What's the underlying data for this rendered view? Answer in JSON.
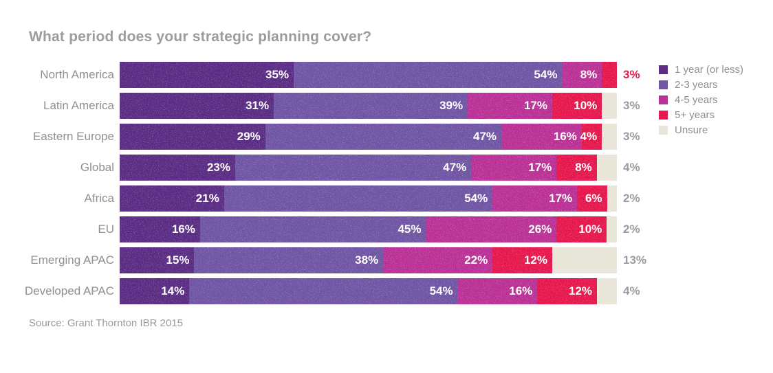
{
  "title": "What period does your strategic planning cover?",
  "source": "Source: Grant Thornton IBR 2015",
  "chart_data": {
    "type": "bar",
    "stacked": true,
    "orientation": "horizontal",
    "unit": "%",
    "x_max": 100,
    "grid": false,
    "legend_position": "right",
    "inside_label_min_value": 4,
    "legend": [
      {
        "key": "1_year_or_less",
        "label": "1 year (or less)",
        "color": "#5b2d84"
      },
      {
        "key": "2_3_years",
        "label": "2-3 years",
        "color": "#7056a4"
      },
      {
        "key": "4_5_years",
        "label": "4-5 years",
        "color": "#bb3297"
      },
      {
        "key": "5_plus_years",
        "label": "5+ years",
        "color": "#e6194e"
      },
      {
        "key": "unsure",
        "label": "Unsure",
        "color": "#e9e5d8"
      }
    ],
    "rows": [
      {
        "category": "North America",
        "values": [
          35,
          54,
          8,
          3,
          0
        ],
        "end_label": "3%",
        "end_label_emphasis": true
      },
      {
        "category": "Latin America",
        "values": [
          31,
          39,
          17,
          10,
          3
        ],
        "end_label": "3%",
        "end_label_emphasis": false
      },
      {
        "category": "Eastern Europe",
        "values": [
          29,
          47,
          16,
          4,
          3
        ],
        "end_label": "3%",
        "end_label_emphasis": false
      },
      {
        "category": "Global",
        "values": [
          23,
          47,
          17,
          8,
          4
        ],
        "end_label": "4%",
        "end_label_emphasis": false
      },
      {
        "category": "Africa",
        "values": [
          21,
          54,
          17,
          6,
          2
        ],
        "end_label": "2%",
        "end_label_emphasis": false
      },
      {
        "category": "EU",
        "values": [
          16,
          45,
          26,
          10,
          2
        ],
        "end_label": "2%",
        "end_label_emphasis": false
      },
      {
        "category": "Emerging APAC",
        "values": [
          15,
          38,
          22,
          12,
          13
        ],
        "end_label": "13%",
        "end_label_emphasis": false
      },
      {
        "category": "Developed APAC",
        "values": [
          14,
          54,
          16,
          12,
          4
        ],
        "end_label": "4%",
        "end_label_emphasis": false
      }
    ],
    "colors": {
      "accent_end_label": "#e6194e",
      "muted_end_label": "#9b9b9b"
    }
  }
}
